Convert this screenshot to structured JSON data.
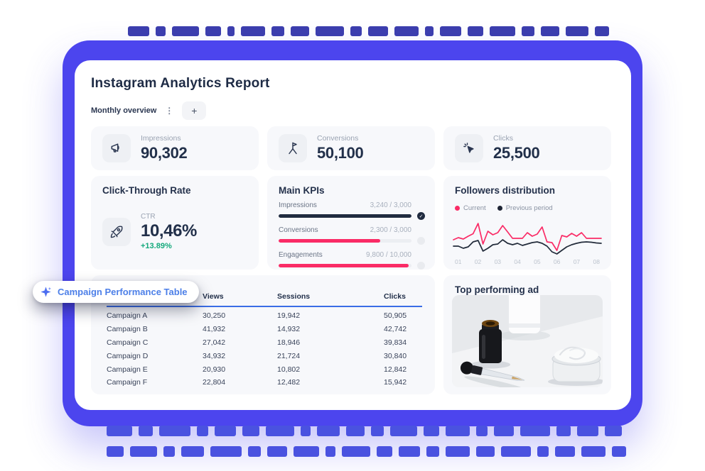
{
  "page": {
    "title": "Instagram Analytics Report"
  },
  "tabs": {
    "active": "Monthly overview",
    "menu_icon": "⋮",
    "add_label": "+"
  },
  "stats": [
    {
      "label": "Impressions",
      "value": "90,302",
      "icon": "megaphone-icon"
    },
    {
      "label": "Conversions",
      "value": "50,100",
      "icon": "flag-milestone-icon"
    },
    {
      "label": "Clicks",
      "value": "25,500",
      "icon": "cursor-click-icon"
    }
  ],
  "ctr_card": {
    "title": "Click-Through Rate",
    "label": "CTR",
    "value": "10,46%",
    "delta": "+13.89%",
    "delta_color": "#14a97c",
    "icon": "rocket-icon"
  },
  "main_kpis": {
    "title": "Main KPIs",
    "items": [
      {
        "label": "Impressions",
        "value": 3240,
        "target": 3000,
        "display": "3,240 / 3,000",
        "complete": true,
        "bar_color": "#202b40"
      },
      {
        "label": "Conversions",
        "value": 2300,
        "target": 3000,
        "display": "2,300 / 3,000",
        "complete": false,
        "bar_color": "#fa2b66"
      },
      {
        "label": "Engagements",
        "value": 9800,
        "target": 10000,
        "display": "9,800 / 10,000",
        "complete": false,
        "bar_color": "#fa2b66"
      }
    ]
  },
  "followers": {
    "title": "Followers distribution",
    "legend": [
      {
        "label": "Current",
        "color": "#fa2b66"
      },
      {
        "label": "Previous period",
        "color": "#1e2535"
      }
    ]
  },
  "chart_data": {
    "type": "line",
    "title": "Followers distribution",
    "x_ticks": [
      "01",
      "02",
      "03",
      "04",
      "05",
      "06",
      "07",
      "08"
    ],
    "grid": false,
    "legend_position": "top-left",
    "series": [
      {
        "name": "Current",
        "color": "#fa2b66",
        "values": [
          40,
          46,
          42,
          50,
          57,
          86,
          28,
          64,
          54,
          60,
          80,
          62,
          44,
          44,
          44,
          60,
          50,
          56,
          76,
          34,
          32,
          10,
          52,
          48,
          58,
          50,
          60,
          44,
          44,
          44,
          44
        ]
      },
      {
        "name": "Previous period",
        "color": "#222b3a",
        "values": [
          22,
          22,
          16,
          20,
          34,
          38,
          8,
          16,
          26,
          28,
          40,
          30,
          26,
          30,
          24,
          28,
          32,
          34,
          30,
          22,
          6,
          0,
          10,
          20,
          26,
          30,
          33,
          34,
          33,
          31,
          30
        ]
      }
    ]
  },
  "table": {
    "floating_label": "Campaign Performance Table",
    "columns": [
      "Campaign",
      "Views",
      "Sessions",
      "Clicks"
    ],
    "sorted_column": "Campaign",
    "sort_direction": "asc",
    "rows": [
      [
        "Campaign A",
        "30,250",
        "19,942",
        "50,905"
      ],
      [
        "Campaign B",
        "41,932",
        "14,932",
        "42,742"
      ],
      [
        "Campaign C",
        "27,042",
        "18,946",
        "39,834"
      ],
      [
        "Campaign D",
        "34,932",
        "21,724",
        "30,840"
      ],
      [
        "Campaign E",
        "20,930",
        "10,802",
        "12,842"
      ],
      [
        "Campaign F",
        "22,804",
        "12,482",
        "15,942"
      ]
    ]
  },
  "top_ad": {
    "title": "Top performing ad",
    "image_alt": "cosmetics-product-photo"
  },
  "colors": {
    "frame": "#4c45ee",
    "accent_pink": "#fa2b66",
    "accent_blue": "#4c7fe8",
    "navy": "#22304a",
    "green": "#14a97c"
  }
}
